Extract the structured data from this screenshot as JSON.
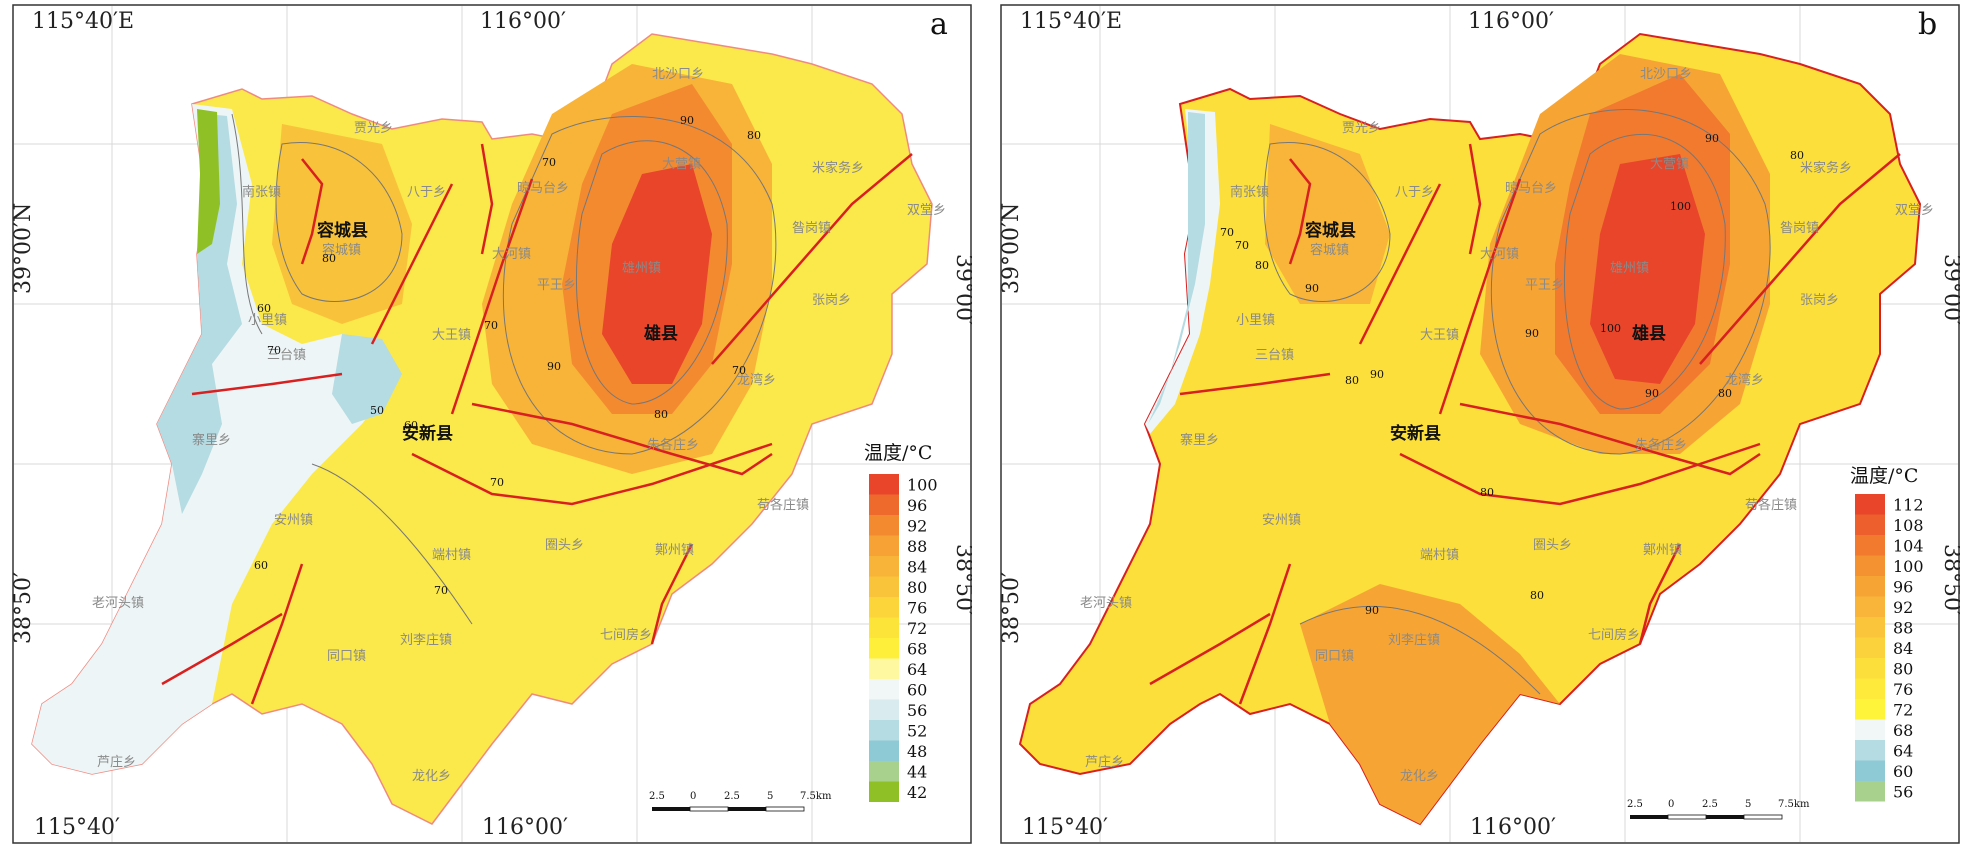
{
  "panels": [
    {
      "letter": "a",
      "coords": {
        "top_left": "115°40′E",
        "top_mid": "116°00′",
        "left_mid": "39°00′N",
        "right_top": "39°00′",
        "right_bottom": "38°50′",
        "left_bottom": "38°50′",
        "bottom_left": "115°40′",
        "bottom_mid": "116°00′"
      },
      "counties": [
        "容城县",
        "雄县",
        "安新县"
      ],
      "places": [
        "贾光乡",
        "八于乡",
        "南张镇",
        "容城镇",
        "晾马台乡",
        "大河镇",
        "昝岗镇",
        "双堂乡",
        "平王乡",
        "小里镇",
        "大王镇",
        "张岗乡",
        "三台镇",
        "寨里乡",
        "北沙口乡",
        "米家务乡",
        "龙湾乡",
        "朱各庄乡",
        "安州镇",
        "端村镇",
        "圈头乡",
        "苟各庄镇",
        "老河头镇",
        "七间房乡",
        "同口镇",
        "刘李庄镇",
        "芦庄乡",
        "龙化乡",
        "鄚州镇",
        "雄州镇",
        "大营镇"
      ],
      "contours": [
        "90",
        "80",
        "70",
        "80",
        "60",
        "70",
        "70",
        "90",
        "80",
        "70",
        "50",
        "60",
        "70",
        "60",
        "70"
      ],
      "legend": {
        "title": "温度/°C",
        "values": [
          "100",
          "96",
          "92",
          "88",
          "84",
          "80",
          "76",
          "72",
          "68",
          "64",
          "60",
          "56",
          "52",
          "48",
          "44",
          "42"
        ],
        "colors": [
          "#e8452a",
          "#ee6a2c",
          "#f38a30",
          "#f6a235",
          "#f8b438",
          "#fac43a",
          "#fbd53a",
          "#fce438",
          "#fdef3a",
          "#fef8a0",
          "#f1f6f7",
          "#d9ebef",
          "#b5dbe3",
          "#8ecad6",
          "#a9d18e",
          "#8fc127"
        ]
      },
      "scale": {
        "labels": [
          "2.5",
          "0",
          "2.5",
          "5",
          "7.5km"
        ]
      }
    },
    {
      "letter": "b",
      "coords": {
        "top_left": "115°40′E",
        "top_mid": "116°00′",
        "left_mid": "39°00′N",
        "right_top": "39°00′",
        "right_bottom": "38°50′",
        "left_bottom": "38°50′",
        "bottom_left": "115°40′",
        "bottom_mid": "116°00′"
      },
      "counties": [
        "容城县",
        "雄县",
        "安新县"
      ],
      "places": [
        "贾光乡",
        "八于乡",
        "南张镇",
        "容城镇",
        "晾马台乡",
        "大河镇",
        "昝岗镇",
        "双堂乡",
        "平王乡",
        "小里镇",
        "大王镇",
        "张岗乡",
        "三台镇",
        "寨里乡",
        "北沙口乡",
        "米家务乡",
        "龙湾乡",
        "朱各庄乡",
        "安州镇",
        "端村镇",
        "圈头乡",
        "苟各庄镇",
        "老河头镇",
        "七间房乡",
        "同口镇",
        "刘李庄镇",
        "芦庄乡",
        "龙化乡",
        "鄚州镇",
        "雄州镇",
        "大营镇"
      ],
      "contours": [
        "90",
        "100",
        "80",
        "70",
        "80",
        "90",
        "100",
        "90",
        "90",
        "80",
        "80",
        "80",
        "90",
        "80",
        "90",
        "70"
      ],
      "legend": {
        "title": "温度/°C",
        "values": [
          "112",
          "108",
          "104",
          "100",
          "96",
          "92",
          "88",
          "84",
          "80",
          "76",
          "72",
          "68",
          "64",
          "60",
          "56"
        ],
        "colors": [
          "#e8452a",
          "#ed5f2c",
          "#f17a2f",
          "#f49232",
          "#f6a535",
          "#f8b539",
          "#fac43b",
          "#fbd23b",
          "#fcdf3a",
          "#fdea3a",
          "#fef43a",
          "#f1f6f7",
          "#b5dbe3",
          "#8ecad6",
          "#a9d18e"
        ]
      },
      "scale": {
        "labels": [
          "2.5",
          "0",
          "2.5",
          "5",
          "7.5km"
        ]
      }
    }
  ]
}
